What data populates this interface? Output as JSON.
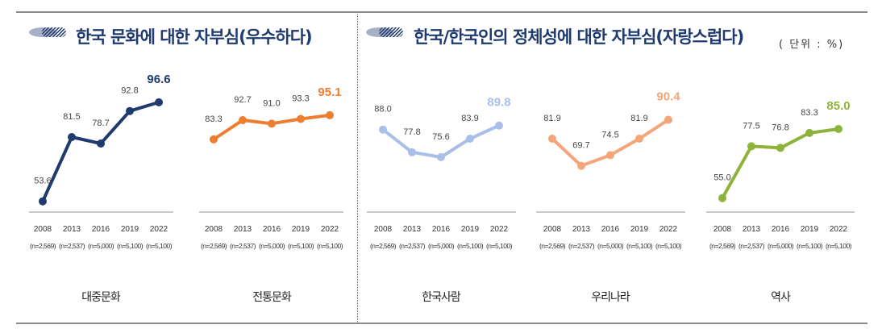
{
  "titles": {
    "left": "한국 문화에 대한 자부심(우수하다)",
    "right": "한국/한국인의 정체성에 대한 자부심(자랑스럽다)",
    "unit": "( 단위 : %)"
  },
  "chart_data": [
    {
      "type": "line",
      "category": "대중문화",
      "color": "#1f3a6e",
      "categories": [
        "2008",
        "2013",
        "2016",
        "2019",
        "2022"
      ],
      "sample_sizes": [
        "(n=2,569)",
        "(n=2,537)",
        "(n=5,000)",
        "(n=5,100)",
        "(n=5,100)"
      ],
      "values": [
        53.6,
        81.5,
        78.7,
        92.8,
        96.6
      ],
      "labels": [
        "53.6",
        "81.5",
        "78.7",
        "92.8",
        "96.6"
      ],
      "ylim": [
        50,
        106
      ]
    },
    {
      "type": "line",
      "category": "전통문화",
      "color": "#ed7d31",
      "categories": [
        "2008",
        "2013",
        "2016",
        "2019",
        "2022"
      ],
      "sample_sizes": [
        "(n=2,569)",
        "(n=2,537)",
        "(n=5,000)",
        "(n=5,100)",
        "(n=5,100)"
      ],
      "values": [
        83.3,
        92.7,
        91.0,
        93.3,
        95.1
      ],
      "labels": [
        "83.3",
        "92.7",
        "91.0",
        "93.3",
        "95.1"
      ],
      "ylim": [
        49,
        112
      ]
    },
    {
      "type": "line",
      "category": "한국사람",
      "color": "#a9bfe8",
      "categories": [
        "2008",
        "2013",
        "2016",
        "2019",
        "2022"
      ],
      "sample_sizes": [
        "(n=2,569)",
        "(n=2,537)",
        "(n=5,000)",
        "(n=5,100)",
        "(n=5,100)"
      ],
      "values": [
        88.0,
        77.8,
        75.6,
        83.9,
        89.8
      ],
      "labels": [
        "88.0",
        "77.8",
        "75.6",
        "83.9",
        "89.8"
      ],
      "ylim": [
        52,
        110
      ]
    },
    {
      "type": "line",
      "category": "우리나라",
      "color": "#f4a67a",
      "categories": [
        "2008",
        "2013",
        "2016",
        "2019",
        "2022"
      ],
      "sample_sizes": [
        "(n=2,569)",
        "(n=2,537)",
        "(n=5,000)",
        "(n=5,100)",
        "(n=5,100)"
      ],
      "values": [
        81.9,
        69.7,
        74.5,
        81.9,
        90.4
      ],
      "labels": [
        "81.9",
        "69.7",
        "74.5",
        "81.9",
        "90.4"
      ],
      "ylim": [
        50,
        108
      ]
    },
    {
      "type": "line",
      "category": "역사",
      "color": "#8db33a",
      "categories": [
        "2008",
        "2013",
        "2016",
        "2019",
        "2022"
      ],
      "sample_sizes": [
        "(n=2,569)",
        "(n=2,537)",
        "(n=5,000)",
        "(n=5,100)",
        "(n=5,100)"
      ],
      "values": [
        55.0,
        77.5,
        76.8,
        83.3,
        85.0
      ],
      "labels": [
        "55.0",
        "77.5",
        "76.8",
        "83.3",
        "85.0"
      ],
      "ylim": [
        50,
        106
      ]
    }
  ]
}
